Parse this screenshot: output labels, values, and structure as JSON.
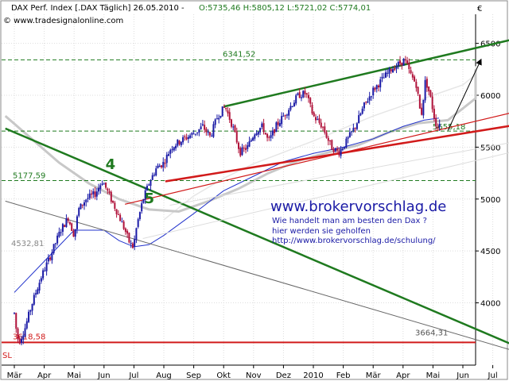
{
  "header": {
    "title": "DAX Perf. Index [.DAX  Täglich] 26.05.2010 - ",
    "ohlc": "O:5735,46 H:5805,12 L:5721,02 C:5774,01",
    "site": "© www.tradesignalonline.com",
    "currency": "€"
  },
  "overlay": {
    "url": "www.brokervorschlag.de",
    "line1": "Wie handelt man am besten  den Dax ?",
    "line2": "hier werden sie geholfen",
    "line3": "http://www.brokervorschlag.de/schulung/"
  },
  "markers": {
    "sl": "SL"
  },
  "colors": {
    "price_up": "#1a1aa6",
    "price_down": "#b0123a",
    "green": "#1f7a1f",
    "red": "#d11a1a",
    "blue_ma": "#2233cc",
    "gray_ma": "#c8c8c8",
    "grid": "#dddddd"
  },
  "chart_data": {
    "type": "candlestick",
    "title": "DAX Perf. Index [.DAX  Täglich] 26.05.2010",
    "x_labels": [
      "Mär",
      "Apr",
      "Mai",
      "Jun",
      "Jul",
      "Aug",
      "Sep",
      "Okt",
      "Nov",
      "Dez",
      "2010",
      "Feb",
      "Mär",
      "Apr",
      "Mai",
      "Jun",
      "Jul"
    ],
    "y_ticks": [
      4000,
      4500,
      5000,
      5500,
      6000,
      6500
    ],
    "ylim": [
      3400,
      6780
    ],
    "grid": true,
    "levels": [
      {
        "label": "6341,52",
        "value": 6341.52,
        "style": "dashed",
        "color": "#1f7a1f"
      },
      {
        "label": "5655,18",
        "value": 5655.18,
        "style": "dashed",
        "color": "#1f7a1f"
      },
      {
        "label": "5177,59",
        "value": 5177.59,
        "style": "dashed",
        "color": "#1f7a1f"
      },
      {
        "label": "4532,81",
        "value": 4532.81,
        "style": "none",
        "color": "#888888"
      },
      {
        "label": "3618,58",
        "value": 3618.58,
        "style": "solid",
        "color": "#d11a1a"
      },
      {
        "label": "3664,31",
        "value": 3664.31,
        "style": "none",
        "color": "#555555"
      }
    ],
    "wave_labels": [
      {
        "label": "4",
        "month": 3.05,
        "value": 5290
      },
      {
        "label": "5",
        "month": 4.35,
        "value": 4960
      }
    ],
    "trendlines": [
      {
        "name": "green-channel-top",
        "color": "#1f7a1f",
        "from": [
          7.0,
          5890
        ],
        "to": [
          17.0,
          6560
        ],
        "width": 2.5
      },
      {
        "name": "green-downtrend",
        "color": "#1f7a1f",
        "from": [
          -0.3,
          5680
        ],
        "to": [
          16.8,
          3580
        ],
        "width": 2.5
      },
      {
        "name": "gray-downtrend",
        "color": "#666666",
        "from": [
          -0.3,
          4980
        ],
        "to": [
          16.8,
          3530
        ],
        "width": 1
      },
      {
        "name": "red-support",
        "color": "#d11a1a",
        "from": [
          5.05,
          5170
        ],
        "to": [
          16.9,
          5720
        ],
        "width": 2.5
      },
      {
        "name": "red-rising",
        "color": "#d11a1a",
        "from": [
          3.7,
          4950
        ],
        "to": [
          16.9,
          5850
        ],
        "width": 1.2
      },
      {
        "name": "gray-long-rising",
        "color": "#dddddd",
        "from": [
          4.3,
          4620
        ],
        "to": [
          16.9,
          5470
        ],
        "width": 1
      },
      {
        "name": "gray-rising-2",
        "color": "#dddddd",
        "from": [
          5.2,
          4940
        ],
        "to": [
          16.9,
          5560
        ],
        "width": 1
      }
    ],
    "arrow": {
      "from": [
        14.5,
        5660
      ],
      "to": [
        15.6,
        6340
      ]
    },
    "price_path": [
      [
        0.0,
        3900
      ],
      [
        0.08,
        3700
      ],
      [
        0.15,
        3618.58
      ],
      [
        0.35,
        3750
      ],
      [
        0.6,
        4000
      ],
      [
        0.9,
        4250
      ],
      [
        1.2,
        4450
      ],
      [
        1.55,
        4700
      ],
      [
        1.8,
        4820
      ],
      [
        2.0,
        4650
      ],
      [
        2.15,
        4900
      ],
      [
        2.4,
        5000
      ],
      [
        2.7,
        5050
      ],
      [
        2.95,
        5177.59
      ],
      [
        3.15,
        5050
      ],
      [
        3.4,
        4900
      ],
      [
        3.7,
        4700
      ],
      [
        3.85,
        4580
      ],
      [
        3.98,
        4532.81
      ],
      [
        4.1,
        4750
      ],
      [
        4.3,
        4990
      ],
      [
        4.5,
        5150
      ],
      [
        4.75,
        5300
      ],
      [
        5.0,
        5350
      ],
      [
        5.25,
        5500
      ],
      [
        5.5,
        5550
      ],
      [
        5.8,
        5600
      ],
      [
        6.1,
        5650
      ],
      [
        6.3,
        5700
      ],
      [
        6.55,
        5600
      ],
      [
        6.8,
        5800
      ],
      [
        7.05,
        5890
      ],
      [
        7.3,
        5700
      ],
      [
        7.55,
        5450
      ],
      [
        7.8,
        5500
      ],
      [
        8.05,
        5650
      ],
      [
        8.3,
        5700
      ],
      [
        8.5,
        5550
      ],
      [
        8.75,
        5700
      ],
      [
        9.0,
        5800
      ],
      [
        9.25,
        5900
      ],
      [
        9.5,
        6000
      ],
      [
        9.75,
        6020
      ],
      [
        10.0,
        5800
      ],
      [
        10.3,
        5700
      ],
      [
        10.6,
        5500
      ],
      [
        10.85,
        5450
      ],
      [
        11.1,
        5550
      ],
      [
        11.4,
        5700
      ],
      [
        11.7,
        5900
      ],
      [
        12.0,
        6050
      ],
      [
        12.3,
        6150
      ],
      [
        12.6,
        6250
      ],
      [
        12.85,
        6300
      ],
      [
        13.05,
        6341.52
      ],
      [
        13.25,
        6200
      ],
      [
        13.45,
        6100
      ],
      [
        13.6,
        5780
      ],
      [
        13.75,
        6150
      ],
      [
        13.9,
        6000
      ],
      [
        14.05,
        5780
      ],
      [
        14.15,
        5680
      ],
      [
        14.25,
        5774.01
      ]
    ],
    "blue_ma": [
      [
        0.0,
        4100
      ],
      [
        1.0,
        4400
      ],
      [
        2.0,
        4700
      ],
      [
        3.0,
        4700
      ],
      [
        3.5,
        4600
      ],
      [
        4.0,
        4540
      ],
      [
        4.5,
        4560
      ],
      [
        5.0,
        4650
      ],
      [
        6.0,
        4860
      ],
      [
        7.0,
        5080
      ],
      [
        8.0,
        5220
      ],
      [
        9.0,
        5360
      ],
      [
        10.0,
        5440
      ],
      [
        11.0,
        5500
      ],
      [
        12.0,
        5580
      ],
      [
        13.0,
        5700
      ],
      [
        13.7,
        5760
      ],
      [
        14.2,
        5780
      ]
    ],
    "gray_ma": [
      [
        -0.3,
        5800
      ],
      [
        0.5,
        5600
      ],
      [
        1.5,
        5350
      ],
      [
        2.5,
        5150
      ],
      [
        3.5,
        5000
      ],
      [
        4.5,
        4900
      ],
      [
        5.5,
        4880
      ],
      [
        6.5,
        4980
      ],
      [
        7.5,
        5100
      ],
      [
        8.5,
        5250
      ],
      [
        9.5,
        5370
      ],
      [
        10.5,
        5450
      ],
      [
        11.5,
        5520
      ],
      [
        12.5,
        5640
      ],
      [
        13.5,
        5730
      ],
      [
        14.5,
        5760
      ],
      [
        15.5,
        5970
      ],
      [
        16.5,
        6120
      ],
      [
        16.9,
        6250
      ]
    ],
    "gray_ma2": [
      [
        5.0,
        4800
      ],
      [
        6.0,
        5030
      ],
      [
        7.0,
        5200
      ],
      [
        8.0,
        5340
      ],
      [
        9.0,
        5450
      ],
      [
        10.0,
        5560
      ],
      [
        11.0,
        5680
      ],
      [
        12.0,
        5800
      ],
      [
        13.0,
        5900
      ],
      [
        14.0,
        6000
      ],
      [
        15.0,
        6100
      ],
      [
        16.0,
        6200
      ],
      [
        16.9,
        6280
      ]
    ]
  }
}
